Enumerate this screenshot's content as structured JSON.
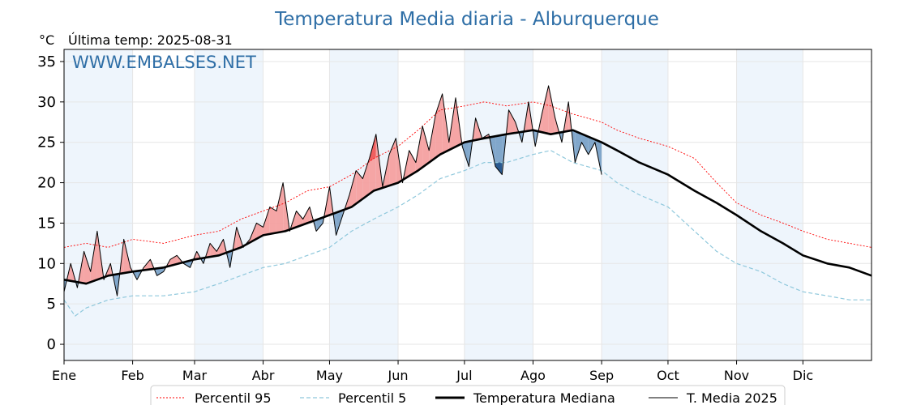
{
  "chart_data": {
    "type": "line",
    "title": "Temperatura Media diaria - Alburquerque",
    "ylabel": "°C",
    "last_temp_label": "Última temp: 2025-08-31",
    "watermark": "WWW.EMBALSES.NET",
    "ylim": [
      -2,
      36.5
    ],
    "xlim": [
      0,
      365
    ],
    "yticks": [
      "0",
      "5",
      "10",
      "15",
      "20",
      "25",
      "30",
      "35"
    ],
    "ytick_values": [
      0,
      5,
      10,
      15,
      20,
      25,
      30,
      35
    ],
    "months": [
      "Ene",
      "Feb",
      "Mar",
      "Abr",
      "May",
      "Jun",
      "Jul",
      "Ago",
      "Sep",
      "Oct",
      "Nov",
      "Dic"
    ],
    "month_starts": [
      0,
      31,
      59,
      90,
      120,
      151,
      181,
      212,
      243,
      273,
      304,
      334
    ],
    "grid": true,
    "legend_position": "bottom",
    "colors": {
      "p95": "#ff0000",
      "p5": "#8fc8dc",
      "median": "#000000",
      "current": "#000000",
      "above_fill": "#f4a0a0",
      "above_strong": "#f06060",
      "below_fill": "#7aa2c8",
      "below_strong": "#2a5a90",
      "month_band": "#eef5fc"
    },
    "series": [
      {
        "name": "Percentil 95",
        "style": "dotted",
        "color": "#ff0000",
        "x": [
          0,
          10,
          20,
          31,
          45,
          59,
          70,
          80,
          90,
          100,
          110,
          120,
          130,
          140,
          151,
          160,
          170,
          181,
          190,
          200,
          212,
          220,
          230,
          243,
          250,
          260,
          273,
          285,
          295,
          304,
          315,
          325,
          334,
          345,
          355,
          365
        ],
        "values": [
          12.0,
          12.5,
          12.0,
          13.0,
          12.5,
          13.5,
          14.0,
          15.5,
          16.5,
          17.5,
          19.0,
          19.5,
          21.0,
          23.0,
          24.5,
          26.5,
          29.0,
          29.5,
          30.0,
          29.5,
          30.0,
          29.5,
          28.5,
          27.5,
          26.5,
          25.5,
          24.5,
          23.0,
          20.0,
          17.5,
          16.0,
          15.0,
          14.0,
          13.0,
          12.5,
          12.0
        ]
      },
      {
        "name": "Percentil 5",
        "style": "dashed",
        "color": "#8fc8dc",
        "x": [
          0,
          5,
          10,
          20,
          31,
          45,
          59,
          70,
          80,
          90,
          100,
          110,
          120,
          130,
          140,
          151,
          160,
          170,
          181,
          190,
          200,
          212,
          220,
          230,
          243,
          250,
          260,
          273,
          285,
          295,
          304,
          315,
          325,
          334,
          345,
          355,
          365
        ],
        "values": [
          5.5,
          3.5,
          4.5,
          5.5,
          6.0,
          6.0,
          6.5,
          7.5,
          8.5,
          9.5,
          10.0,
          11.0,
          12.0,
          14.0,
          15.5,
          17.0,
          18.5,
          20.5,
          21.5,
          22.5,
          22.5,
          23.5,
          24.0,
          22.5,
          21.5,
          20.0,
          18.5,
          17.0,
          14.0,
          11.5,
          10.0,
          9.0,
          7.5,
          6.5,
          6.0,
          5.5,
          5.5
        ]
      },
      {
        "name": "Temperatura Mediana",
        "style": "solid-thick",
        "color": "#000000",
        "x": [
          0,
          10,
          20,
          31,
          45,
          59,
          70,
          80,
          90,
          100,
          110,
          120,
          130,
          140,
          151,
          160,
          170,
          181,
          190,
          200,
          212,
          220,
          230,
          243,
          250,
          260,
          273,
          285,
          295,
          304,
          315,
          325,
          334,
          345,
          355,
          365
        ],
        "values": [
          8.0,
          7.5,
          8.5,
          9.0,
          9.5,
          10.5,
          11.0,
          12.0,
          13.5,
          14.0,
          15.0,
          16.0,
          17.0,
          19.0,
          20.0,
          21.5,
          23.5,
          25.0,
          25.5,
          26.0,
          26.5,
          26.0,
          26.5,
          25.0,
          24.0,
          22.5,
          21.0,
          19.0,
          17.5,
          16.0,
          14.0,
          12.5,
          11.0,
          10.0,
          9.5,
          8.5
        ]
      },
      {
        "name": "T. Media 2025",
        "style": "solid-thin",
        "color": "#000000",
        "x": [
          0,
          3,
          6,
          9,
          12,
          15,
          18,
          21,
          24,
          27,
          30,
          33,
          36,
          39,
          42,
          45,
          48,
          51,
          54,
          57,
          60,
          63,
          66,
          69,
          72,
          75,
          78,
          81,
          84,
          87,
          90,
          93,
          96,
          99,
          102,
          105,
          108,
          111,
          114,
          117,
          120,
          123,
          126,
          129,
          132,
          135,
          138,
          141,
          144,
          147,
          150,
          153,
          156,
          159,
          162,
          165,
          168,
          171,
          174,
          177,
          180,
          183,
          186,
          189,
          192,
          195,
          198,
          201,
          204,
          207,
          210,
          213,
          216,
          219,
          222,
          225,
          228,
          231,
          234,
          237,
          240,
          243
        ],
        "values": [
          6.5,
          10.0,
          7.0,
          11.5,
          9.0,
          14.0,
          8.0,
          10.0,
          6.0,
          13.0,
          9.5,
          8.0,
          9.5,
          10.5,
          8.5,
          9.0,
          10.5,
          11.0,
          10.0,
          9.5,
          11.5,
          10.0,
          12.5,
          11.5,
          13.0,
          9.5,
          14.5,
          12.0,
          13.0,
          15.0,
          14.5,
          17.0,
          16.5,
          20.0,
          14.0,
          16.5,
          15.5,
          17.0,
          14.0,
          15.0,
          19.5,
          13.5,
          16.0,
          18.5,
          21.5,
          20.5,
          23.0,
          26.0,
          19.5,
          23.5,
          25.5,
          20.0,
          24.0,
          22.5,
          27.0,
          24.0,
          28.5,
          31.0,
          25.0,
          30.5,
          24.5,
          22.0,
          28.0,
          25.5,
          26.0,
          22.0,
          21.0,
          29.0,
          27.5,
          25.0,
          30.0,
          24.5,
          28.5,
          32.0,
          28.0,
          25.0,
          30.0,
          22.5,
          25.0,
          23.5,
          25.0,
          21.0
        ]
      }
    ]
  }
}
